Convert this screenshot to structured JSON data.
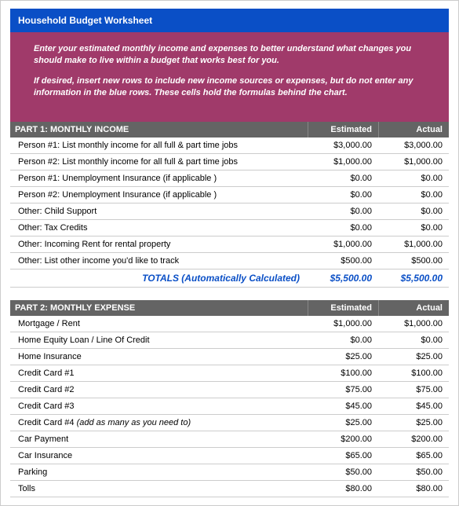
{
  "title": "Household Budget Worksheet",
  "instructions": {
    "p1": "Enter your estimated monthly income and expenses to better understand what changes you should make to live within a budget that works best for you.",
    "p2": "If desired, insert new rows to include new income sources or expenses, but do not enter any information in the blue rows. These cells hold the formulas behind the chart."
  },
  "colors": {
    "title_bg": "#0a4fc6",
    "instructions_bg": "#a03a6a",
    "section_header_bg": "#646464",
    "totals_color": "#0a4fc6",
    "row_border": "#cccccc"
  },
  "income": {
    "header": {
      "label": "PART 1: MONTHLY INCOME",
      "est": "Estimated",
      "act": "Actual"
    },
    "rows": [
      {
        "label": "Person #1: List monthly income for all full & part time jobs",
        "est": "$3,000.00",
        "act": "$3,000.00"
      },
      {
        "label": "Person #2: List monthly income for all full & part time jobs",
        "est": "$1,000.00",
        "act": "$1,000.00"
      },
      {
        "label": "Person #1: Unemployment Insurance (if applicable )",
        "est": "$0.00",
        "act": "$0.00"
      },
      {
        "label": "Person #2: Unemployment Insurance (if applicable )",
        "est": "$0.00",
        "act": "$0.00"
      },
      {
        "label": "Other: Child Support",
        "est": "$0.00",
        "act": "$0.00"
      },
      {
        "label": "Other: Tax Credits",
        "est": "$0.00",
        "act": "$0.00"
      },
      {
        "label": "Other: Incoming Rent for rental property",
        "est": "$1,000.00",
        "act": "$1,000.00"
      },
      {
        "label": "Other: List other income you'd like to  track",
        "est": "$500.00",
        "act": "$500.00"
      }
    ],
    "totals": {
      "label": "TOTALS (Automatically Calculated)",
      "est": "$5,500.00",
      "act": "$5,500.00"
    }
  },
  "expense": {
    "header": {
      "label": "PART 2: MONTHLY EXPENSE",
      "est": "Estimated",
      "act": "Actual"
    },
    "rows": [
      {
        "label": "Mortgage / Rent",
        "est": "$1,000.00",
        "act": "$1,000.00"
      },
      {
        "label": "Home Equity Loan / Line Of Credit",
        "est": "$0.00",
        "act": "$0.00"
      },
      {
        "label": "Home Insurance",
        "est": "$25.00",
        "act": "$25.00"
      },
      {
        "label": "Credit Card #1",
        "est": "$100.00",
        "act": "$100.00"
      },
      {
        "label": "Credit Card #2",
        "est": "$75.00",
        "act": "$75.00"
      },
      {
        "label": "Credit Card #3",
        "est": "$45.00",
        "act": "$45.00"
      },
      {
        "label": "Credit Card #4 ",
        "note": "(add as many as you need to)",
        "est": "$25.00",
        "act": "$25.00"
      },
      {
        "label": "Car Payment",
        "est": "$200.00",
        "act": "$200.00"
      },
      {
        "label": "Car Insurance",
        "est": "$65.00",
        "act": "$65.00"
      },
      {
        "label": "Parking",
        "est": "$50.00",
        "act": "$50.00"
      },
      {
        "label": "Tolls",
        "est": "$80.00",
        "act": "$80.00"
      }
    ]
  }
}
